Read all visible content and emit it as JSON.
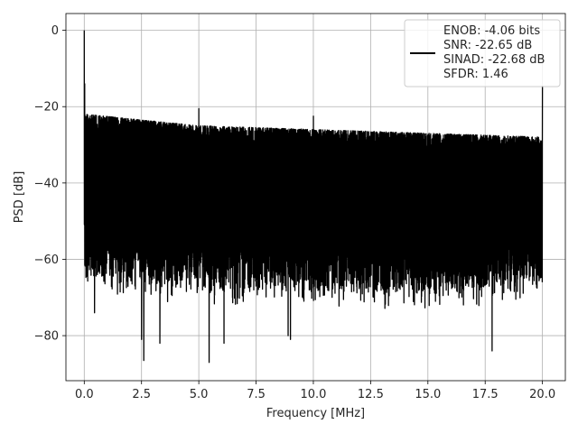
{
  "chart_data": {
    "type": "line",
    "title": "",
    "xlabel": "Frequency [MHz]",
    "ylabel": "PSD [dB]",
    "xlim": [
      -0.8,
      21.0
    ],
    "ylim": [
      -91.8,
      4.4
    ],
    "xticks": [
      0.0,
      2.5,
      5.0,
      7.5,
      10.0,
      12.5,
      15.0,
      17.5,
      20.0
    ],
    "xtick_labels": [
      "0.0",
      "2.5",
      "5.0",
      "7.5",
      "10.0",
      "12.5",
      "15.0",
      "17.5",
      "20.0"
    ],
    "yticks": [
      0,
      -20,
      -40,
      -60,
      -80
    ],
    "ytick_labels": [
      "0",
      "−20",
      "−40",
      "−60",
      "−80"
    ],
    "grid": true,
    "line_color": "#000000",
    "legend": {
      "placement": "top-right",
      "lines": [
        "ENOB: -4.06 bits",
        "SNR: -22.65 dB",
        "SINAD: -22.68 dB",
        "SFDR: 1.46"
      ]
    },
    "series": [
      {
        "x_range": [
          0.0,
          20.0
        ],
        "points": 4096,
        "peaks": [
          {
            "x": 0.0,
            "y": 0.0
          },
          {
            "x": 0.02,
            "y": -14.0
          },
          {
            "x": 5.0,
            "y": -20.5
          },
          {
            "x": 10.0,
            "y": -22.5
          },
          {
            "x": 20.0,
            "y": -14.5
          }
        ],
        "upper_envelope": [
          [
            0.1,
            -22
          ],
          [
            2.5,
            -23.5
          ],
          [
            5.0,
            -25
          ],
          [
            7.5,
            -25.5
          ],
          [
            10.0,
            -26
          ],
          [
            12.5,
            -26.5
          ],
          [
            15.0,
            -27
          ],
          [
            17.5,
            -27.5
          ],
          [
            20.0,
            -28
          ]
        ],
        "lower_envelope": [
          [
            0.1,
            -64
          ],
          [
            5.0,
            -66
          ],
          [
            10.0,
            -67
          ],
          [
            15.0,
            -68
          ],
          [
            20.0,
            -66
          ]
        ],
        "min_dips": [
          {
            "x": 0.45,
            "y": -74
          },
          {
            "x": 2.5,
            "y": -81
          },
          {
            "x": 2.6,
            "y": -86.5
          },
          {
            "x": 3.3,
            "y": -82
          },
          {
            "x": 5.45,
            "y": -87
          },
          {
            "x": 6.1,
            "y": -82
          },
          {
            "x": 8.9,
            "y": -80
          },
          {
            "x": 9.0,
            "y": -81
          },
          {
            "x": 17.8,
            "y": -84
          }
        ]
      }
    ]
  }
}
